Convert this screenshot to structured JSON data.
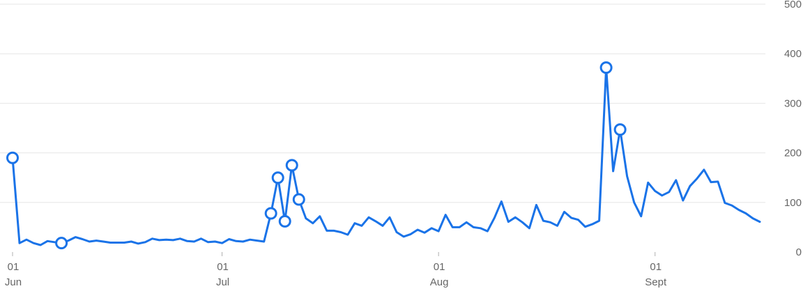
{
  "chart_data": {
    "type": "line",
    "title": "",
    "xlabel": "",
    "ylabel": "",
    "ylim": [
      0,
      500
    ],
    "y_ticks": [
      "0",
      "100",
      "200",
      "300",
      "400",
      "500"
    ],
    "x_ticks": [
      {
        "day": "01",
        "month": "Jun"
      },
      {
        "day": "01",
        "month": "Jul"
      },
      {
        "day": "01",
        "month": "Aug"
      },
      {
        "day": "01",
        "month": "Sept"
      }
    ],
    "x_tick_dates": [
      "2024-06-01",
      "2024-07-01",
      "2024-08-01",
      "2024-09-01"
    ],
    "grid": true,
    "y_axis_position": "right",
    "color": "#1a73e8",
    "series": [
      {
        "x": [
          "2024-06-01",
          "2024-06-02",
          "2024-06-03",
          "2024-06-04",
          "2024-06-05",
          "2024-06-06",
          "2024-06-07",
          "2024-06-08",
          "2024-06-09",
          "2024-06-10",
          "2024-06-11",
          "2024-06-12",
          "2024-06-13",
          "2024-06-14",
          "2024-06-15",
          "2024-06-16",
          "2024-06-17",
          "2024-06-18",
          "2024-06-19",
          "2024-06-20",
          "2024-06-21",
          "2024-06-22",
          "2024-06-23",
          "2024-06-24",
          "2024-06-25",
          "2024-06-26",
          "2024-06-27",
          "2024-06-28",
          "2024-06-29",
          "2024-06-30",
          "2024-07-01",
          "2024-07-02",
          "2024-07-03",
          "2024-07-04",
          "2024-07-05",
          "2024-07-06",
          "2024-07-07",
          "2024-07-08",
          "2024-07-09",
          "2024-07-10",
          "2024-07-11",
          "2024-07-12",
          "2024-07-13",
          "2024-07-14",
          "2024-07-15",
          "2024-07-16",
          "2024-07-17",
          "2024-07-18",
          "2024-07-19",
          "2024-07-20",
          "2024-07-21",
          "2024-07-22",
          "2024-07-23",
          "2024-07-24",
          "2024-07-25",
          "2024-07-26",
          "2024-07-27",
          "2024-07-28",
          "2024-07-29",
          "2024-07-30",
          "2024-07-31",
          "2024-08-01",
          "2024-08-02",
          "2024-08-03",
          "2024-08-04",
          "2024-08-05",
          "2024-08-06",
          "2024-08-07",
          "2024-08-08",
          "2024-08-09",
          "2024-08-10",
          "2024-08-11",
          "2024-08-12",
          "2024-08-13",
          "2024-08-14",
          "2024-08-15",
          "2024-08-16",
          "2024-08-17",
          "2024-08-18",
          "2024-08-19",
          "2024-08-20",
          "2024-08-21",
          "2024-08-22",
          "2024-08-23",
          "2024-08-24",
          "2024-08-25",
          "2024-08-26",
          "2024-08-27",
          "2024-08-28",
          "2024-08-29",
          "2024-08-30",
          "2024-08-31",
          "2024-09-01",
          "2024-09-02",
          "2024-09-03",
          "2024-09-04",
          "2024-09-05",
          "2024-09-06",
          "2024-09-07",
          "2024-09-08",
          "2024-09-09",
          "2024-09-10",
          "2024-09-11",
          "2024-09-12",
          "2024-09-13",
          "2024-09-14",
          "2024-09-15",
          "2024-09-16"
        ],
        "values": [
          190,
          18,
          25,
          18,
          14,
          22,
          20,
          18,
          23,
          30,
          26,
          21,
          23,
          21,
          19,
          19,
          19,
          21,
          17,
          20,
          27,
          24,
          25,
          24,
          27,
          22,
          21,
          27,
          20,
          21,
          18,
          26,
          22,
          21,
          25,
          23,
          21,
          78,
          150,
          62,
          175,
          106,
          68,
          58,
          72,
          43,
          43,
          40,
          35,
          58,
          53,
          70,
          62,
          53,
          70,
          40,
          31,
          36,
          45,
          39,
          48,
          42,
          75,
          50,
          50,
          60,
          50,
          48,
          42,
          69,
          102,
          61,
          70,
          60,
          48,
          95,
          63,
          60,
          53,
          81,
          69,
          65,
          51,
          56,
          63,
          372,
          163,
          247,
          153,
          100,
          72,
          140,
          123,
          114,
          121,
          145,
          104,
          133,
          148,
          166,
          141,
          142,
          99,
          94,
          85,
          78,
          68,
          61
        ]
      }
    ],
    "highlighted_points": [
      {
        "x": "2024-06-01",
        "value": 190
      },
      {
        "x": "2024-06-08",
        "value": 18
      },
      {
        "x": "2024-07-08",
        "value": 78
      },
      {
        "x": "2024-07-09",
        "value": 150
      },
      {
        "x": "2024-07-10",
        "value": 62
      },
      {
        "x": "2024-07-11",
        "value": 175
      },
      {
        "x": "2024-07-12",
        "value": 106
      },
      {
        "x": "2024-08-25",
        "value": 372
      },
      {
        "x": "2024-08-27",
        "value": 247
      }
    ]
  }
}
